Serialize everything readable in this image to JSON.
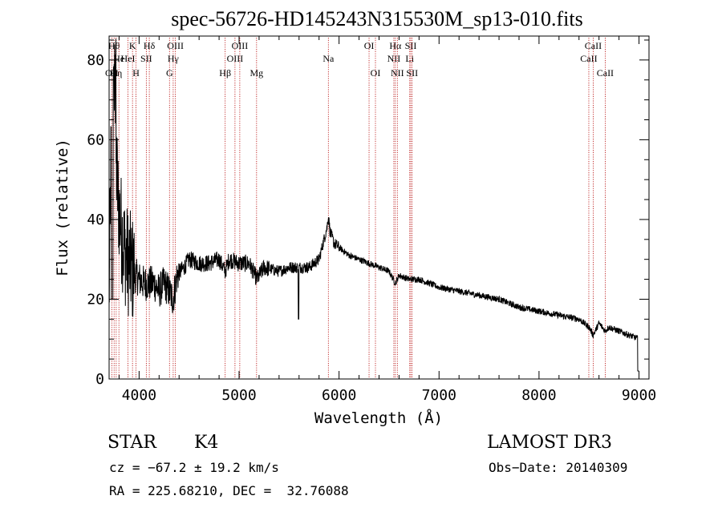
{
  "chart_data": {
    "type": "line",
    "title": "spec-56726-HD145243N315530M_sp13-010.fits",
    "xlabel": "Wavelength (Å)",
    "ylabel": "Flux (relative)",
    "xlim": [
      3700,
      9100
    ],
    "ylim": [
      0,
      86
    ],
    "x_ticks": [
      4000,
      5000,
      6000,
      7000,
      8000,
      9000
    ],
    "x_tick_labels": [
      "4000",
      "5000",
      "6000",
      "7000",
      "8000",
      "9000"
    ],
    "y_ticks": [
      0,
      20,
      40,
      60,
      80
    ],
    "y_tick_labels": [
      "0",
      "20",
      "40",
      "60",
      "80"
    ],
    "grid": false,
    "line_color": "#000000",
    "marker_color": "#b40000",
    "spectrum_anchors": {
      "x": [
        3700,
        3730,
        3760,
        3790,
        3820,
        3850,
        3880,
        3920,
        3960,
        4000,
        4050,
        4100,
        4150,
        4200,
        4250,
        4300,
        4340,
        4380,
        4450,
        4500,
        4600,
        4700,
        4800,
        4861,
        4900,
        5000,
        5100,
        5180,
        5250,
        5400,
        5500,
        5600,
        5700,
        5800,
        5850,
        5880,
        5893,
        5910,
        5950,
        6000,
        6100,
        6200,
        6300,
        6400,
        6500,
        6563,
        6600,
        6700,
        6800,
        7000,
        7200,
        7400,
        7600,
        7800,
        8000,
        8200,
        8400,
        8500,
        8542,
        8600,
        8662,
        8700,
        8800,
        8900,
        9000
      ],
      "y": [
        20,
        76,
        60,
        45,
        38,
        33,
        30,
        28,
        26,
        25,
        24,
        24,
        24,
        22,
        24,
        22,
        20,
        26,
        28,
        30,
        29,
        29,
        30,
        27,
        30,
        29,
        29,
        25,
        28,
        27,
        28,
        28,
        28,
        30,
        35,
        38,
        41,
        37,
        34,
        33,
        31,
        30,
        29,
        28,
        27,
        24,
        26,
        25,
        25,
        23,
        22,
        21,
        20,
        18,
        17,
        16,
        15,
        13,
        11,
        14,
        12,
        13,
        12,
        11,
        10
      ]
    },
    "spectrum_noise": [
      {
        "from": 3700,
        "to": 3950,
        "amp": 14
      },
      {
        "from": 3950,
        "to": 4400,
        "amp": 4.5
      },
      {
        "from": 4400,
        "to": 5300,
        "amp": 2.2
      },
      {
        "from": 5300,
        "to": 6000,
        "amp": 1.5
      },
      {
        "from": 6000,
        "to": 9000,
        "amp": 0.8
      }
    ],
    "lines": [
      {
        "x": 3727,
        "label": "OII",
        "row": 3
      },
      {
        "x": 3750,
        "label": "Hθ",
        "row": 1
      },
      {
        "x": 3771,
        "label": "Hη",
        "row": 3
      },
      {
        "x": 3798,
        "label": "He",
        "row": 2
      },
      {
        "x": 3889,
        "label": "HeI",
        "row": 2
      },
      {
        "x": 3934,
        "label": "K",
        "row": 1
      },
      {
        "x": 3969,
        "label": "H",
        "row": 3
      },
      {
        "x": 4072,
        "label": "SII",
        "row": 2
      },
      {
        "x": 4102,
        "label": "Hδ",
        "row": 1
      },
      {
        "x": 4304,
        "label": "G",
        "row": 3
      },
      {
        "x": 4341,
        "label": "Hγ",
        "row": 2
      },
      {
        "x": 4363,
        "label": "OIII",
        "row": 1
      },
      {
        "x": 4861,
        "label": "Hβ",
        "row": 3
      },
      {
        "x": 4959,
        "label": "OIII",
        "row": 2
      },
      {
        "x": 5007,
        "label": "OIII",
        "row": 1
      },
      {
        "x": 5175,
        "label": "Mg",
        "row": 3
      },
      {
        "x": 5893,
        "label": "Na",
        "row": 2
      },
      {
        "x": 6300,
        "label": "OI",
        "row": 1
      },
      {
        "x": 6364,
        "label": "OI",
        "row": 3
      },
      {
        "x": 6548,
        "label": "NII",
        "row": 2
      },
      {
        "x": 6563,
        "label": "Hα",
        "row": 1
      },
      {
        "x": 6583,
        "label": "NII",
        "row": 3
      },
      {
        "x": 6707,
        "label": "Li",
        "row": 2
      },
      {
        "x": 6717,
        "label": "SII",
        "row": 1
      },
      {
        "x": 6731,
        "label": "SII",
        "row": 3
      },
      {
        "x": 8498,
        "label": "CaII",
        "row": 2
      },
      {
        "x": 8542,
        "label": "CaII",
        "row": 1
      },
      {
        "x": 8662,
        "label": "CaII",
        "row": 3
      }
    ]
  },
  "info": {
    "class_label": "STAR",
    "subclass": "K4",
    "survey": "LAMOST DR3",
    "cz": "cz = −67.2 ± 19.2 km/s",
    "obs_date": "Obs−Date: 20140309",
    "coords": "RA = 225.68210, DEC =  32.76088"
  }
}
